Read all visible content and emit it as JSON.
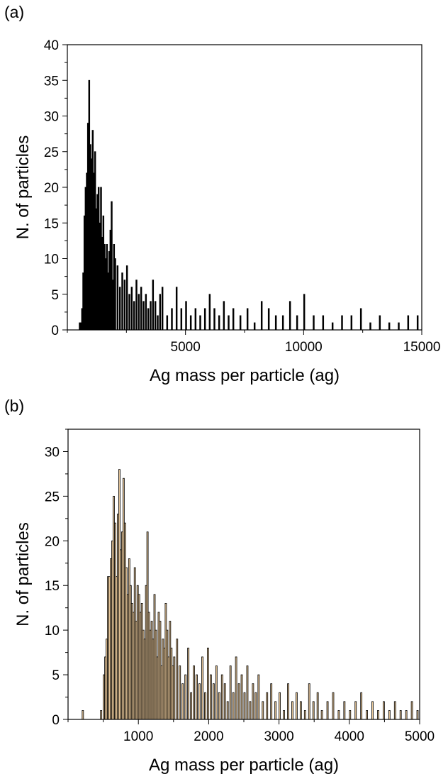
{
  "chart_data": [
    {
      "panel_label": "(a)",
      "type": "bar",
      "xlabel": "Ag mass per particle (ag)",
      "ylabel": "N. of particles",
      "xlim": [
        0,
        15000
      ],
      "ylim": [
        0,
        40
      ],
      "xticks": [
        5000,
        10000,
        15000
      ],
      "yticks": [
        0,
        5,
        10,
        15,
        20,
        25,
        30,
        35,
        40
      ],
      "bar_color": "#000000",
      "bar_fill": "#000000",
      "bin_width": 50,
      "x": [
        500,
        550,
        600,
        650,
        700,
        750,
        800,
        850,
        900,
        950,
        1000,
        1050,
        1100,
        1150,
        1200,
        1250,
        1300,
        1350,
        1400,
        1450,
        1500,
        1550,
        1600,
        1650,
        1700,
        1750,
        1800,
        1850,
        1900,
        1950,
        2000,
        2100,
        2200,
        2300,
        2400,
        2500,
        2600,
        2700,
        2800,
        2900,
        3000,
        3100,
        3200,
        3300,
        3400,
        3500,
        3600,
        3700,
        3800,
        3900,
        4000,
        4200,
        4400,
        4600,
        4800,
        5000,
        5200,
        5400,
        5600,
        5800,
        6000,
        6200,
        6400,
        6600,
        6800,
        7000,
        7300,
        7600,
        7900,
        8200,
        8500,
        8800,
        9100,
        9400,
        9700,
        10000,
        10400,
        10800,
        11200,
        11600,
        12000,
        12400,
        12800,
        13200,
        13600,
        14000,
        14400,
        14800
      ],
      "values": [
        1,
        1,
        3,
        8,
        16,
        20,
        22,
        29,
        35,
        26,
        24,
        28,
        22,
        25,
        17,
        19,
        20,
        15,
        20,
        13,
        16,
        12,
        10,
        12,
        8,
        11,
        14,
        18,
        7,
        12,
        10,
        9,
        6,
        8,
        7,
        9,
        5,
        6,
        4,
        7,
        5,
        6,
        4,
        5,
        3,
        4,
        7,
        4,
        2,
        5,
        6,
        2,
        3,
        6,
        3,
        4,
        2,
        3,
        2,
        3,
        5,
        3,
        2,
        4,
        2,
        3,
        2,
        3,
        1,
        4,
        3,
        2,
        2,
        4,
        2,
        5,
        2,
        2,
        1,
        2,
        2,
        3,
        1,
        2,
        1,
        1,
        2,
        2
      ]
    },
    {
      "panel_label": "(b)",
      "type": "bar",
      "xlabel": "Ag mass per particle (ag)",
      "ylabel": "N. of particles",
      "xlim": [
        0,
        5000
      ],
      "ylim": [
        0,
        32.5
      ],
      "xticks": [
        1000,
        2000,
        3000,
        4000,
        5000
      ],
      "yticks": [
        0,
        5,
        10,
        15,
        20,
        25,
        30
      ],
      "bar_color": "#000000",
      "bar_fill": "#e9c89a",
      "bin_width": 20,
      "x": [
        200,
        460,
        500,
        520,
        540,
        560,
        580,
        600,
        620,
        640,
        660,
        680,
        700,
        720,
        740,
        760,
        780,
        800,
        820,
        840,
        860,
        880,
        900,
        920,
        940,
        960,
        980,
        1000,
        1020,
        1040,
        1060,
        1080,
        1100,
        1120,
        1140,
        1160,
        1180,
        1200,
        1220,
        1240,
        1260,
        1280,
        1300,
        1320,
        1340,
        1360,
        1380,
        1400,
        1420,
        1440,
        1460,
        1480,
        1500,
        1540,
        1580,
        1620,
        1660,
        1700,
        1740,
        1780,
        1820,
        1860,
        1900,
        1940,
        1980,
        2020,
        2060,
        2100,
        2140,
        2180,
        2220,
        2260,
        2300,
        2340,
        2380,
        2420,
        2460,
        2500,
        2540,
        2580,
        2620,
        2660,
        2700,
        2760,
        2820,
        2880,
        2940,
        3000,
        3060,
        3120,
        3180,
        3240,
        3300,
        3360,
        3420,
        3480,
        3540,
        3600,
        3680,
        3760,
        3840,
        3920,
        4000,
        4080,
        4160,
        4240,
        4320,
        4400,
        4480,
        4560,
        4640,
        4720,
        4800,
        4880,
        4960
      ],
      "values": [
        1,
        1,
        5,
        7,
        9,
        16,
        16,
        18,
        20,
        25,
        22,
        16,
        23,
        28,
        19,
        21,
        27,
        22,
        17,
        14,
        18,
        15,
        13,
        12,
        17,
        11,
        15,
        14,
        12,
        13,
        10,
        9,
        15,
        21,
        12,
        10,
        11,
        9,
        14,
        10,
        7,
        12,
        11,
        6,
        9,
        8,
        13,
        10,
        7,
        11,
        8,
        6,
        7,
        9,
        6,
        4,
        5,
        8,
        3,
        6,
        5,
        4,
        7,
        3,
        8,
        5,
        4,
        6,
        3,
        5,
        4,
        2,
        6,
        3,
        7,
        4,
        5,
        3,
        6,
        2,
        4,
        3,
        5,
        2,
        3,
        4,
        2,
        3,
        1,
        4,
        2,
        3,
        2,
        1,
        4,
        2,
        3,
        1,
        2,
        3,
        1,
        2,
        1,
        2,
        3,
        1,
        2,
        1,
        2,
        1,
        2,
        1,
        1,
        2,
        1
      ]
    }
  ]
}
